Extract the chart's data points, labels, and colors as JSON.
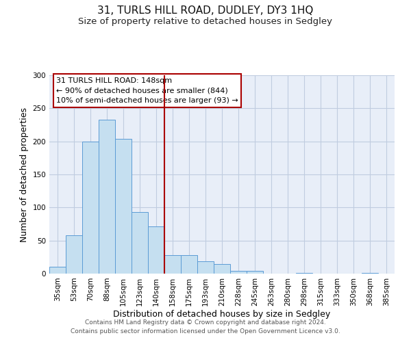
{
  "title": "31, TURLS HILL ROAD, DUDLEY, DY3 1HQ",
  "subtitle": "Size of property relative to detached houses in Sedgley",
  "xlabel": "Distribution of detached houses by size in Sedgley",
  "ylabel": "Number of detached properties",
  "footer_lines": [
    "Contains HM Land Registry data © Crown copyright and database right 2024.",
    "Contains public sector information licensed under the Open Government Licence v3.0."
  ],
  "bar_labels": [
    "35sqm",
    "53sqm",
    "70sqm",
    "88sqm",
    "105sqm",
    "123sqm",
    "140sqm",
    "158sqm",
    "175sqm",
    "193sqm",
    "210sqm",
    "228sqm",
    "245sqm",
    "263sqm",
    "280sqm",
    "298sqm",
    "315sqm",
    "333sqm",
    "350sqm",
    "368sqm",
    "385sqm"
  ],
  "bar_values": [
    10,
    58,
    200,
    233,
    204,
    93,
    71,
    28,
    28,
    19,
    14,
    4,
    4,
    0,
    0,
    1,
    0,
    0,
    0,
    1,
    0
  ],
  "bar_color": "#c5dff0",
  "bar_edge_color": "#5b9bd5",
  "vline_color": "#aa0000",
  "annotation_box_text": "31 TURLS HILL ROAD: 148sqm\n← 90% of detached houses are smaller (844)\n10% of semi-detached houses are larger (93) →",
  "annotation_box_color": "#aa0000",
  "ylim": [
    0,
    300
  ],
  "yticks": [
    0,
    50,
    100,
    150,
    200,
    250,
    300
  ],
  "bg_color": "#ffffff",
  "plot_bg_color": "#e8eef8",
  "grid_color": "#c0cce0",
  "title_fontsize": 11,
  "subtitle_fontsize": 9.5,
  "axis_label_fontsize": 9,
  "tick_fontsize": 7.5,
  "footer_fontsize": 6.5,
  "ann_fontsize": 8
}
